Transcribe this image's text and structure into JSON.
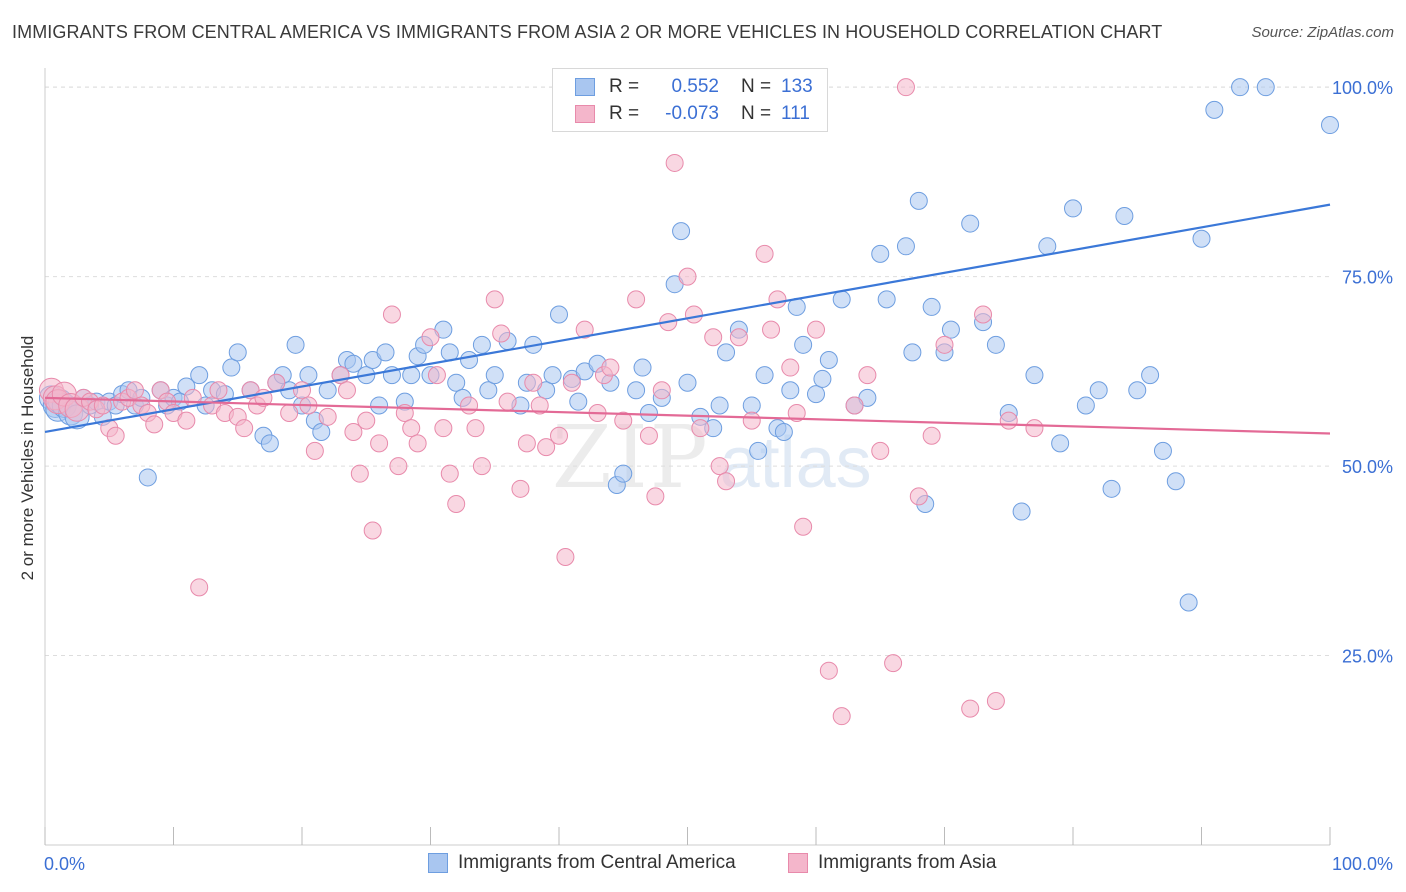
{
  "title": "IMMIGRANTS FROM CENTRAL AMERICA VS IMMIGRANTS FROM ASIA 2 OR MORE VEHICLES IN HOUSEHOLD CORRELATION CHART",
  "source": "Source: ZipAtlas.com",
  "watermark": {
    "zip": "ZIP",
    "atlas": "atlas"
  },
  "colors": {
    "blue": "#3b78d8",
    "blue_fill": "#a9c6f0",
    "pink": "#e36a96",
    "pink_fill": "#f4b6cb",
    "grid": "#dddddd",
    "axis_text": "#3b6fd4"
  },
  "legend_top": {
    "rows": [
      {
        "r_label": "R =",
        "r_value": "0.552",
        "n_label": "N =",
        "n_value": "133"
      },
      {
        "r_label": "R =",
        "r_value": "-0.073",
        "n_label": "N =",
        "n_value": "111"
      }
    ]
  },
  "chart_data": {
    "type": "scatter",
    "title": "IMMIGRANTS FROM CENTRAL AMERICA VS IMMIGRANTS FROM ASIA 2 OR MORE VEHICLES IN HOUSEHOLD CORRELATION CHART",
    "xlabel": "",
    "ylabel": "2 or more Vehicles in Household",
    "xlim": [
      0,
      100
    ],
    "ylim": [
      0,
      102
    ],
    "x_tick_labels": [
      "0.0%",
      "100.0%"
    ],
    "y_ticks": [
      25,
      50,
      75,
      100
    ],
    "y_tick_labels": [
      "25.0%",
      "50.0%",
      "75.0%",
      "100.0%"
    ],
    "grid": true,
    "legend_position": "bottom",
    "series": [
      {
        "name": "Immigrants from Central America",
        "color": "#3b78d8",
        "trend": {
          "x": [
            0,
            100
          ],
          "y": [
            54.5,
            84.5
          ]
        },
        "points": [
          [
            0.5,
            59
          ],
          [
            0.8,
            58
          ],
          [
            1,
            57.5
          ],
          [
            1.2,
            58.5
          ],
          [
            1.5,
            58
          ],
          [
            2,
            57
          ],
          [
            2.5,
            56.5
          ],
          [
            3,
            59
          ],
          [
            3.5,
            58
          ],
          [
            4,
            58.5
          ],
          [
            4.5,
            56.5
          ],
          [
            5,
            58.5
          ],
          [
            5.5,
            58
          ],
          [
            6,
            59.5
          ],
          [
            6.5,
            60
          ],
          [
            7,
            58
          ],
          [
            7.5,
            59
          ],
          [
            8,
            48.5
          ],
          [
            9,
            60
          ],
          [
            9.5,
            58
          ],
          [
            10,
            59
          ],
          [
            10.5,
            58.5
          ],
          [
            11,
            60.5
          ],
          [
            12,
            62
          ],
          [
            12.5,
            58
          ],
          [
            13,
            60
          ],
          [
            14,
            59.5
          ],
          [
            14.5,
            63
          ],
          [
            15,
            65
          ],
          [
            16,
            60
          ],
          [
            17,
            54
          ],
          [
            17.5,
            53
          ],
          [
            18,
            61
          ],
          [
            18.5,
            62
          ],
          [
            19,
            60
          ],
          [
            19.5,
            66
          ],
          [
            20,
            58
          ],
          [
            20.5,
            62
          ],
          [
            21,
            56
          ],
          [
            21.5,
            54.5
          ],
          [
            22,
            60
          ],
          [
            23,
            62
          ],
          [
            23.5,
            64
          ],
          [
            24,
            63.5
          ],
          [
            25,
            62
          ],
          [
            25.5,
            64
          ],
          [
            26,
            58
          ],
          [
            26.5,
            65
          ],
          [
            27,
            62
          ],
          [
            28,
            58.5
          ],
          [
            28.5,
            62
          ],
          [
            29,
            64.5
          ],
          [
            29.5,
            66
          ],
          [
            30,
            62
          ],
          [
            31,
            68
          ],
          [
            31.5,
            65
          ],
          [
            32,
            61
          ],
          [
            32.5,
            59
          ],
          [
            33,
            64
          ],
          [
            34,
            66
          ],
          [
            34.5,
            60
          ],
          [
            35,
            62
          ],
          [
            36,
            66.5
          ],
          [
            37,
            58
          ],
          [
            37.5,
            61
          ],
          [
            38,
            66
          ],
          [
            39,
            60
          ],
          [
            39.5,
            62
          ],
          [
            40,
            70
          ],
          [
            41,
            61.5
          ],
          [
            41.5,
            58.5
          ],
          [
            42,
            62.5
          ],
          [
            43,
            63.5
          ],
          [
            44,
            61
          ],
          [
            44.5,
            47.5
          ],
          [
            45,
            49
          ],
          [
            46,
            60
          ],
          [
            46.5,
            63
          ],
          [
            47,
            57
          ],
          [
            48,
            59
          ],
          [
            49,
            74
          ],
          [
            49.5,
            81
          ],
          [
            50,
            61
          ],
          [
            51,
            56.5
          ],
          [
            52,
            55
          ],
          [
            52.5,
            58
          ],
          [
            53,
            65
          ],
          [
            54,
            68
          ],
          [
            55,
            58
          ],
          [
            55.5,
            52
          ],
          [
            56,
            62
          ],
          [
            57,
            55
          ],
          [
            57.5,
            54.5
          ],
          [
            58,
            60
          ],
          [
            58.5,
            71
          ],
          [
            59,
            66
          ],
          [
            60,
            59.5
          ],
          [
            60.5,
            61.5
          ],
          [
            61,
            64
          ],
          [
            62,
            72
          ],
          [
            63,
            58
          ],
          [
            64,
            59
          ],
          [
            65,
            78
          ],
          [
            65.5,
            72
          ],
          [
            67,
            79
          ],
          [
            67.5,
            65
          ],
          [
            68,
            85
          ],
          [
            68.5,
            45
          ],
          [
            69,
            71
          ],
          [
            70,
            65
          ],
          [
            70.5,
            68
          ],
          [
            72,
            82
          ],
          [
            73,
            69
          ],
          [
            74,
            66
          ],
          [
            75,
            57
          ],
          [
            76,
            44
          ],
          [
            77,
            62
          ],
          [
            78,
            79
          ],
          [
            79,
            53
          ],
          [
            80,
            84
          ],
          [
            81,
            58
          ],
          [
            82,
            60
          ],
          [
            83,
            47
          ],
          [
            84,
            83
          ],
          [
            85,
            60
          ],
          [
            86,
            62
          ],
          [
            87,
            52
          ],
          [
            88,
            48
          ],
          [
            89,
            32
          ],
          [
            90,
            80
          ],
          [
            91,
            97
          ],
          [
            93,
            100
          ],
          [
            95,
            100
          ],
          [
            100,
            95
          ]
        ]
      },
      {
        "name": "Immigrants from Asia",
        "color": "#e36a96",
        "trend": {
          "x": [
            0,
            100
          ],
          "y": [
            59,
            54.3
          ]
        },
        "points": [
          [
            0.5,
            60
          ],
          [
            0.8,
            59
          ],
          [
            1,
            58.5
          ],
          [
            1.5,
            59.5
          ],
          [
            2,
            58
          ],
          [
            2.5,
            57.5
          ],
          [
            3,
            59
          ],
          [
            3.5,
            58.5
          ],
          [
            4,
            57.5
          ],
          [
            4.5,
            58
          ],
          [
            5,
            55
          ],
          [
            5.5,
            54
          ],
          [
            6,
            58.5
          ],
          [
            6.5,
            59
          ],
          [
            7,
            60
          ],
          [
            7.5,
            58
          ],
          [
            8,
            57
          ],
          [
            8.5,
            55.5
          ],
          [
            9,
            60
          ],
          [
            9.5,
            58.5
          ],
          [
            10,
            57
          ],
          [
            11,
            56
          ],
          [
            11.5,
            59
          ],
          [
            12,
            34
          ],
          [
            13,
            58
          ],
          [
            13.5,
            60
          ],
          [
            14,
            57
          ],
          [
            15,
            56.5
          ],
          [
            15.5,
            55
          ],
          [
            16,
            60
          ],
          [
            16.5,
            58
          ],
          [
            17,
            59
          ],
          [
            18,
            61
          ],
          [
            19,
            57
          ],
          [
            20,
            60
          ],
          [
            20.5,
            58
          ],
          [
            21,
            52
          ],
          [
            22,
            56.5
          ],
          [
            23,
            62
          ],
          [
            23.5,
            60
          ],
          [
            24,
            54.5
          ],
          [
            24.5,
            49
          ],
          [
            25,
            56
          ],
          [
            25.5,
            41.5
          ],
          [
            26,
            53
          ],
          [
            27,
            70
          ],
          [
            27.5,
            50
          ],
          [
            28,
            57
          ],
          [
            28.5,
            55
          ],
          [
            29,
            53
          ],
          [
            30,
            67
          ],
          [
            30.5,
            62
          ],
          [
            31,
            55
          ],
          [
            31.5,
            49
          ],
          [
            32,
            45
          ],
          [
            33,
            58
          ],
          [
            33.5,
            55
          ],
          [
            34,
            50
          ],
          [
            35,
            72
          ],
          [
            35.5,
            67.5
          ],
          [
            36,
            58.5
          ],
          [
            37,
            47
          ],
          [
            37.5,
            53
          ],
          [
            38,
            61
          ],
          [
            38.5,
            58
          ],
          [
            39,
            52.5
          ],
          [
            40,
            54
          ],
          [
            40.5,
            38
          ],
          [
            41,
            61
          ],
          [
            42,
            68
          ],
          [
            43,
            57
          ],
          [
            43.5,
            62
          ],
          [
            44,
            63
          ],
          [
            45,
            56
          ],
          [
            46,
            72
          ],
          [
            47,
            54
          ],
          [
            47.5,
            46
          ],
          [
            48,
            60
          ],
          [
            48.5,
            69
          ],
          [
            49,
            90
          ],
          [
            50,
            75
          ],
          [
            50.5,
            70
          ],
          [
            51,
            55
          ],
          [
            52,
            67
          ],
          [
            52.5,
            50
          ],
          [
            53,
            48
          ],
          [
            54,
            67
          ],
          [
            55,
            56
          ],
          [
            56,
            78
          ],
          [
            56.5,
            68
          ],
          [
            57,
            72
          ],
          [
            58,
            63
          ],
          [
            58.5,
            57
          ],
          [
            59,
            42
          ],
          [
            60,
            68
          ],
          [
            61,
            23
          ],
          [
            62,
            17
          ],
          [
            63,
            58
          ],
          [
            64,
            62
          ],
          [
            65,
            52
          ],
          [
            66,
            24
          ],
          [
            67,
            100
          ],
          [
            68,
            46
          ],
          [
            69,
            54
          ],
          [
            70,
            66
          ],
          [
            72,
            18
          ],
          [
            73,
            70
          ],
          [
            74,
            19
          ],
          [
            75,
            56
          ],
          [
            77,
            55
          ]
        ]
      }
    ]
  },
  "legend_bottom": [
    {
      "label": "Immigrants from Central America"
    },
    {
      "label": "Immigrants from Asia"
    }
  ]
}
